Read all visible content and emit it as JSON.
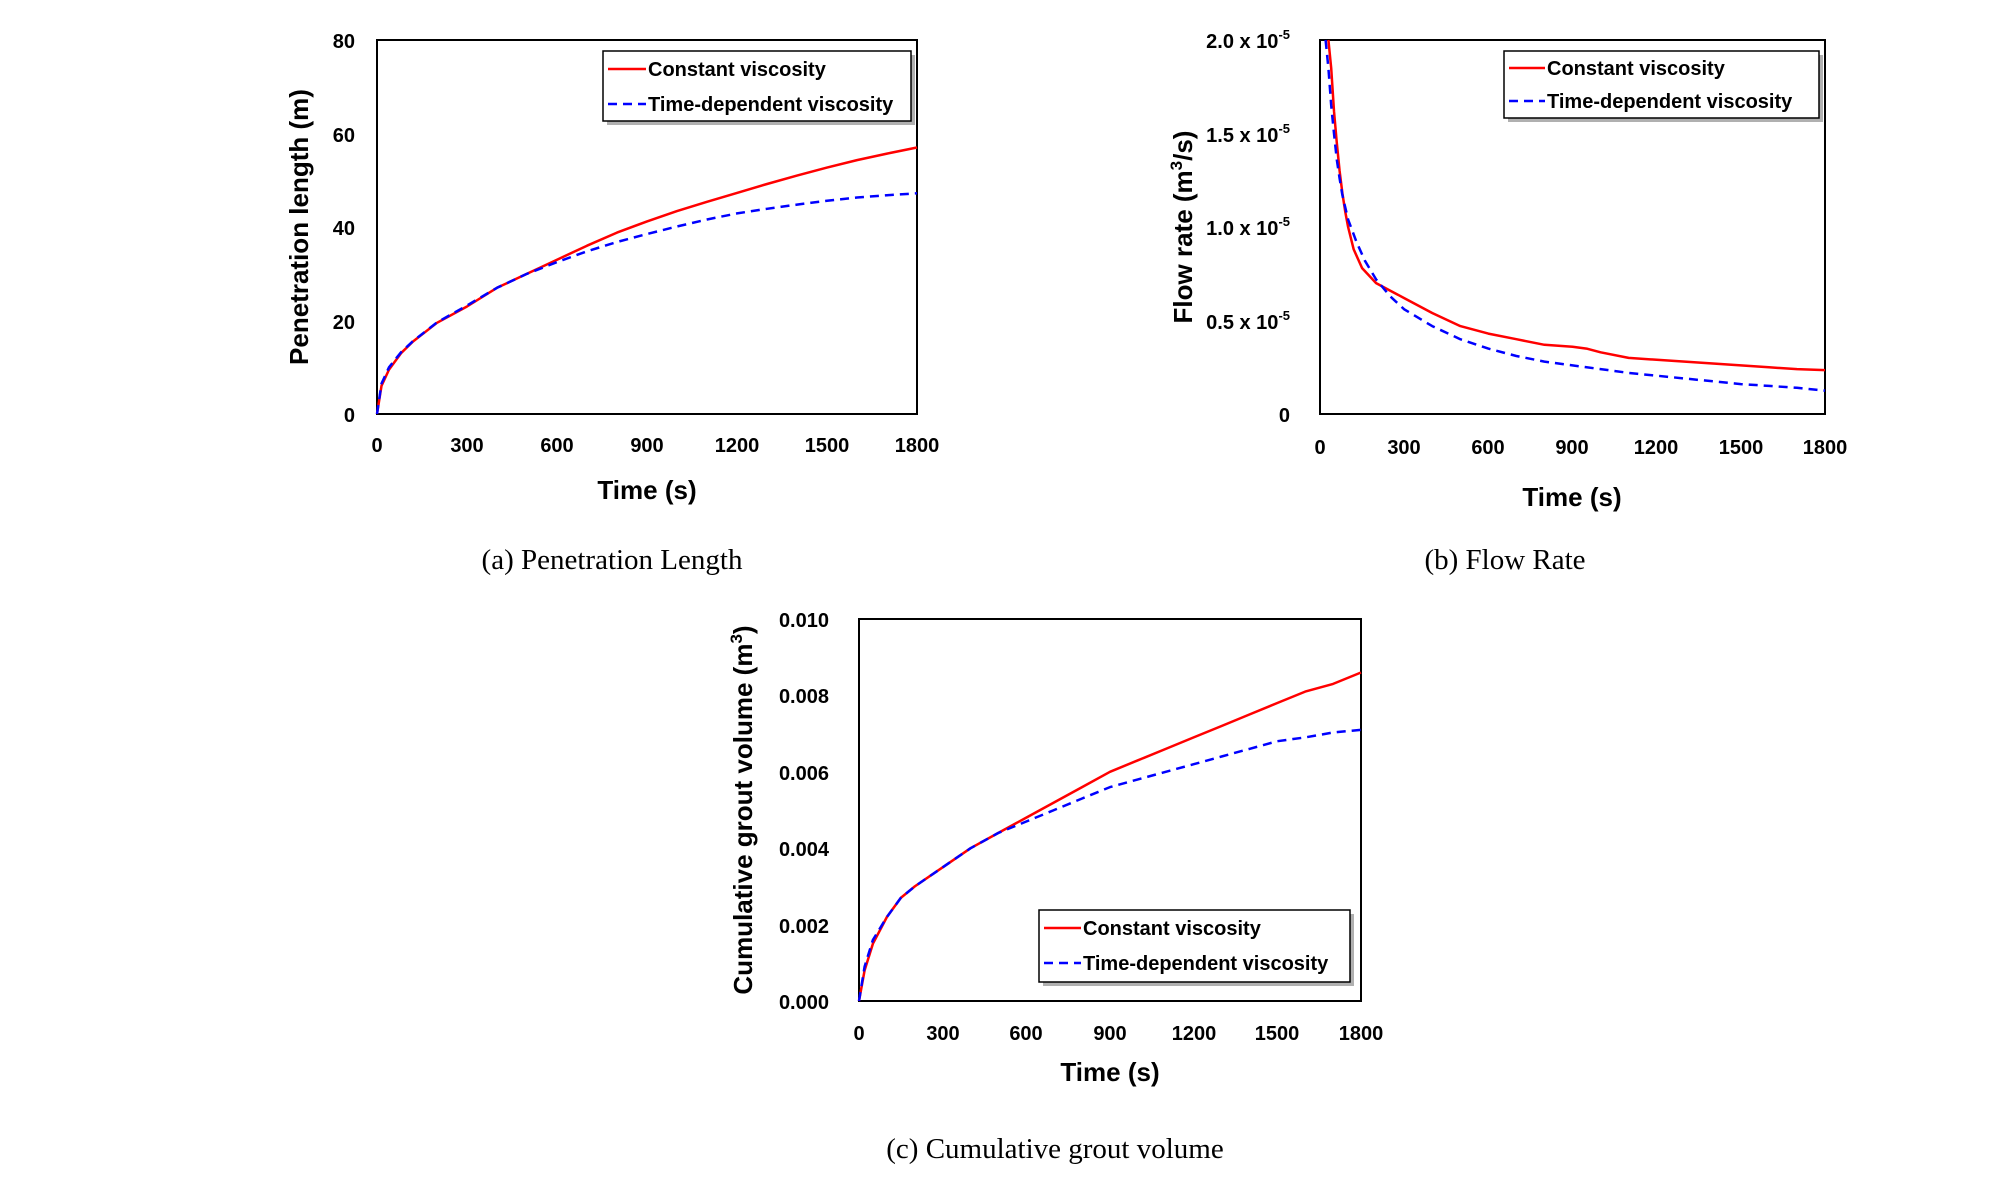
{
  "colors": {
    "constant": "#ff0000",
    "time_dependent": "#0000ff",
    "frame": "#000000",
    "legend_shadow": "#b0b0b0"
  },
  "chart_data": [
    {
      "id": "a",
      "type": "line",
      "caption": "(a)  Penetration  Length",
      "xlabel": "Time (s)",
      "ylabel": "Penetration length (m)",
      "xlim": [
        0,
        1800
      ],
      "ylim": [
        0,
        80
      ],
      "xticks": [
        0,
        300,
        600,
        900,
        1200,
        1500,
        1800
      ],
      "xtick_labels": [
        "0",
        "300",
        "600",
        "900",
        "1200",
        "1500",
        "1800"
      ],
      "yticks": [
        0,
        20,
        40,
        60,
        80
      ],
      "ytick_labels": [
        "0",
        "20",
        "40",
        "60",
        "80"
      ],
      "legend_position": "top-right",
      "series": [
        {
          "name": "Constant viscosity",
          "style": "solid",
          "x": [
            0,
            15,
            40,
            80,
            120,
            200,
            300,
            400,
            500,
            600,
            700,
            800,
            900,
            1000,
            1100,
            1200,
            1300,
            1400,
            1500,
            1600,
            1700,
            1800
          ],
          "y": [
            0,
            6,
            9.5,
            13,
            15.5,
            19.5,
            23,
            27,
            30,
            33,
            36,
            38.8,
            41.2,
            43.4,
            45.4,
            47.3,
            49.2,
            51,
            52.7,
            54.3,
            55.7,
            57
          ]
        },
        {
          "name": "Time-dependent viscosity",
          "style": "dashed",
          "x": [
            0,
            15,
            40,
            80,
            120,
            200,
            300,
            400,
            500,
            600,
            700,
            800,
            900,
            1000,
            1100,
            1200,
            1300,
            1400,
            1500,
            1600,
            1700,
            1800
          ],
          "y": [
            0,
            6.5,
            10,
            13.2,
            15.6,
            19.6,
            23.2,
            27,
            30,
            32.5,
            34.8,
            36.8,
            38.5,
            40.1,
            41.6,
            42.9,
            43.9,
            44.8,
            45.6,
            46.3,
            46.8,
            47.2
          ]
        }
      ]
    },
    {
      "id": "b",
      "type": "line",
      "caption": "(b)  Flow  Rate",
      "xlabel": "Time (s)",
      "ylabel_main": "Flow rate (m",
      "ylabel_sup": "3",
      "ylabel_tail": "/s)",
      "xlim": [
        0,
        1800
      ],
      "ylim": [
        0,
        2.0
      ],
      "value_unit_note": "values in units of 10^-5 m3/s",
      "xticks": [
        0,
        300,
        600,
        900,
        1200,
        1500,
        1800
      ],
      "xtick_labels": [
        "0",
        "300",
        "600",
        "900",
        "1200",
        "1500",
        "1800"
      ],
      "yticks": [
        0,
        0.5,
        1.0,
        1.5,
        2.0
      ],
      "ytick_labels": [
        "0",
        "0.5 x 10",
        "1.0 x 10",
        "1.5 x 10",
        "2.0 x 10"
      ],
      "ytick_exponent": "-5",
      "legend_position": "top-right",
      "series": [
        {
          "name": "Constant viscosity",
          "style": "solid",
          "x": [
            30,
            40,
            50,
            60,
            70,
            80,
            90,
            100,
            120,
            150,
            200,
            250,
            300,
            400,
            500,
            600,
            700,
            800,
            900,
            950,
            1000,
            1100,
            1200,
            1300,
            1400,
            1500,
            1600,
            1700,
            1800
          ],
          "y": [
            2.0,
            1.85,
            1.62,
            1.45,
            1.3,
            1.18,
            1.08,
            1.0,
            0.88,
            0.78,
            0.7,
            0.66,
            0.62,
            0.54,
            0.47,
            0.43,
            0.4,
            0.37,
            0.36,
            0.35,
            0.33,
            0.3,
            0.29,
            0.28,
            0.27,
            0.26,
            0.25,
            0.24,
            0.235
          ]
        },
        {
          "name": "Time-dependent viscosity",
          "style": "dashed",
          "x": [
            20,
            30,
            40,
            50,
            60,
            70,
            80,
            100,
            130,
            160,
            200,
            250,
            300,
            400,
            500,
            600,
            700,
            800,
            900,
            1000,
            1100,
            1200,
            1300,
            1400,
            1500,
            1600,
            1700,
            1800
          ],
          "y": [
            2.0,
            1.85,
            1.65,
            1.5,
            1.36,
            1.26,
            1.17,
            1.04,
            0.92,
            0.82,
            0.72,
            0.63,
            0.56,
            0.47,
            0.4,
            0.35,
            0.31,
            0.28,
            0.26,
            0.24,
            0.22,
            0.205,
            0.19,
            0.175,
            0.16,
            0.15,
            0.14,
            0.125
          ]
        }
      ]
    },
    {
      "id": "c",
      "type": "line",
      "caption": "(c)  Cumulative  grout  volume",
      "xlabel": "Time (s)",
      "ylabel_main": "Cumulative grout volume (m",
      "ylabel_sup": "3",
      "ylabel_tail": ")",
      "xlim": [
        0,
        1800
      ],
      "ylim": [
        0,
        0.01
      ],
      "xticks": [
        0,
        300,
        600,
        900,
        1200,
        1500,
        1800
      ],
      "xtick_labels": [
        "0",
        "300",
        "600",
        "900",
        "1200",
        "1500",
        "1800"
      ],
      "yticks": [
        0,
        0.002,
        0.004,
        0.006,
        0.008,
        0.01
      ],
      "ytick_labels": [
        "0.000",
        "0.002",
        "0.004",
        "0.006",
        "0.008",
        "0.010"
      ],
      "legend_position": "bottom-right",
      "series": [
        {
          "name": "Constant viscosity",
          "style": "solid",
          "x": [
            0,
            20,
            50,
            100,
            150,
            200,
            300,
            400,
            500,
            600,
            700,
            800,
            900,
            1000,
            1100,
            1200,
            1300,
            1400,
            1500,
            1600,
            1700,
            1800
          ],
          "y": [
            0,
            0.0008,
            0.0015,
            0.0022,
            0.0027,
            0.003,
            0.0035,
            0.004,
            0.0044,
            0.0048,
            0.0052,
            0.0056,
            0.006,
            0.0063,
            0.0066,
            0.0069,
            0.0072,
            0.0075,
            0.0078,
            0.0081,
            0.0083,
            0.0086
          ]
        },
        {
          "name": "Time-dependent viscosity",
          "style": "dashed",
          "x": [
            0,
            20,
            50,
            100,
            150,
            200,
            300,
            400,
            500,
            600,
            700,
            800,
            900,
            1000,
            1100,
            1200,
            1300,
            1400,
            1500,
            1600,
            1700,
            1800
          ],
          "y": [
            0,
            0.0009,
            0.0016,
            0.0022,
            0.0027,
            0.003,
            0.0035,
            0.004,
            0.0044,
            0.0047,
            0.005,
            0.0053,
            0.0056,
            0.0058,
            0.006,
            0.0062,
            0.0064,
            0.0066,
            0.0068,
            0.0069,
            0.00703,
            0.0071
          ]
        }
      ]
    }
  ]
}
